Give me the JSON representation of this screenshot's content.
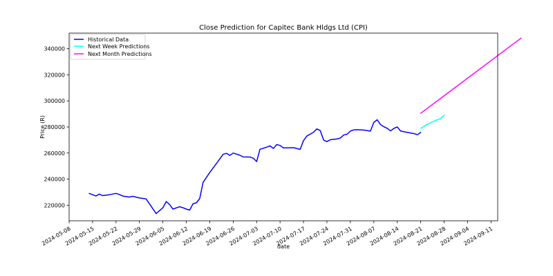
{
  "chart_data": {
    "type": "line",
    "title": "Close Prediction for Capitec Bank Hldgs Ltd (CPI)",
    "xlabel": "date",
    "ylabel": "Price (R)",
    "ylim": [
      208000,
      352000
    ],
    "xlim": [
      "2024-05-08",
      "2024-09-13"
    ],
    "grid": false,
    "legend_position": "top-left",
    "x_ticks": [
      "2024-05-08",
      "2024-05-15",
      "2024-05-22",
      "2024-05-29",
      "2024-06-05",
      "2024-06-12",
      "2024-06-19",
      "2024-06-26",
      "2024-07-03",
      "2024-07-10",
      "2024-07-17",
      "2024-07-24",
      "2024-07-31",
      "2024-08-07",
      "2024-08-14",
      "2024-08-21",
      "2024-08-28",
      "2024-09-04",
      "2024-09-11"
    ],
    "y_ticks": [
      220000,
      240000,
      260000,
      280000,
      300000,
      320000,
      340000
    ],
    "series": [
      {
        "name": "Historical Data",
        "color": "#0000ff",
        "points": [
          {
            "x": "2024-05-14",
            "y": 229000
          },
          {
            "x": "2024-05-16",
            "y": 227000
          },
          {
            "x": "2024-05-17",
            "y": 228500
          },
          {
            "x": "2024-05-18",
            "y": 227300
          },
          {
            "x": "2024-05-20",
            "y": 228000
          },
          {
            "x": "2024-05-22",
            "y": 229000
          },
          {
            "x": "2024-05-23",
            "y": 228200
          },
          {
            "x": "2024-05-24",
            "y": 227000
          },
          {
            "x": "2024-05-26",
            "y": 226200
          },
          {
            "x": "2024-05-27",
            "y": 226800
          },
          {
            "x": "2024-05-29",
            "y": 225500
          },
          {
            "x": "2024-05-31",
            "y": 224800
          },
          {
            "x": "2024-06-03",
            "y": 213500
          },
          {
            "x": "2024-06-05",
            "y": 218000
          },
          {
            "x": "2024-06-06",
            "y": 222800
          },
          {
            "x": "2024-06-07",
            "y": 220500
          },
          {
            "x": "2024-06-08",
            "y": 217000
          },
          {
            "x": "2024-06-10",
            "y": 218800
          },
          {
            "x": "2024-06-11",
            "y": 218000
          },
          {
            "x": "2024-06-12",
            "y": 217000
          },
          {
            "x": "2024-06-13",
            "y": 216200
          },
          {
            "x": "2024-06-14",
            "y": 221000
          },
          {
            "x": "2024-06-15",
            "y": 221800
          },
          {
            "x": "2024-06-16",
            "y": 225000
          },
          {
            "x": "2024-06-17",
            "y": 237500
          },
          {
            "x": "2024-06-19",
            "y": 245000
          },
          {
            "x": "2024-06-21",
            "y": 252000
          },
          {
            "x": "2024-06-23",
            "y": 259000
          },
          {
            "x": "2024-06-24",
            "y": 259800
          },
          {
            "x": "2024-06-25",
            "y": 258200
          },
          {
            "x": "2024-06-26",
            "y": 260000
          },
          {
            "x": "2024-06-28",
            "y": 258300
          },
          {
            "x": "2024-06-29",
            "y": 257000
          },
          {
            "x": "2024-07-01",
            "y": 256900
          },
          {
            "x": "2024-07-02",
            "y": 256000
          },
          {
            "x": "2024-07-03",
            "y": 253500
          },
          {
            "x": "2024-07-04",
            "y": 262900
          },
          {
            "x": "2024-07-06",
            "y": 264500
          },
          {
            "x": "2024-07-07",
            "y": 265500
          },
          {
            "x": "2024-07-08",
            "y": 263500
          },
          {
            "x": "2024-07-09",
            "y": 266500
          },
          {
            "x": "2024-07-10",
            "y": 265800
          },
          {
            "x": "2024-07-11",
            "y": 263900
          },
          {
            "x": "2024-07-13",
            "y": 264000
          },
          {
            "x": "2024-07-14",
            "y": 264100
          },
          {
            "x": "2024-07-16",
            "y": 262800
          },
          {
            "x": "2024-07-17",
            "y": 269500
          },
          {
            "x": "2024-07-18",
            "y": 273000
          },
          {
            "x": "2024-07-20",
            "y": 276000
          },
          {
            "x": "2024-07-21",
            "y": 278500
          },
          {
            "x": "2024-07-22",
            "y": 277200
          },
          {
            "x": "2024-07-23",
            "y": 270000
          },
          {
            "x": "2024-07-24",
            "y": 268800
          },
          {
            "x": "2024-07-25",
            "y": 270200
          },
          {
            "x": "2024-07-27",
            "y": 270800
          },
          {
            "x": "2024-07-28",
            "y": 271500
          },
          {
            "x": "2024-07-29",
            "y": 273800
          },
          {
            "x": "2024-07-30",
            "y": 274400
          },
          {
            "x": "2024-07-31",
            "y": 276800
          },
          {
            "x": "2024-08-01",
            "y": 277800
          },
          {
            "x": "2024-08-02",
            "y": 277900
          },
          {
            "x": "2024-08-04",
            "y": 277600
          },
          {
            "x": "2024-08-05",
            "y": 277200
          },
          {
            "x": "2024-08-06",
            "y": 276800
          },
          {
            "x": "2024-08-07",
            "y": 283500
          },
          {
            "x": "2024-08-08",
            "y": 285500
          },
          {
            "x": "2024-08-09",
            "y": 281800
          },
          {
            "x": "2024-08-10",
            "y": 280200
          },
          {
            "x": "2024-08-11",
            "y": 278900
          },
          {
            "x": "2024-08-12",
            "y": 277000
          },
          {
            "x": "2024-08-13",
            "y": 278900
          },
          {
            "x": "2024-08-14",
            "y": 280000
          },
          {
            "x": "2024-08-15",
            "y": 276900
          },
          {
            "x": "2024-08-17",
            "y": 275800
          },
          {
            "x": "2024-08-19",
            "y": 274900
          },
          {
            "x": "2024-08-20",
            "y": 274000
          },
          {
            "x": "2024-08-21",
            "y": 275800
          }
        ]
      },
      {
        "name": "Next Week Predictions",
        "color": "#00ffff",
        "points": [
          {
            "x": "2024-08-21",
            "y": 278900
          },
          {
            "x": "2024-08-23",
            "y": 282000
          },
          {
            "x": "2024-08-25",
            "y": 284500
          },
          {
            "x": "2024-08-27",
            "y": 286500
          },
          {
            "x": "2024-08-28",
            "y": 289000
          }
        ]
      },
      {
        "name": "Next Month Predictions",
        "color": "#ff00ff",
        "points": [
          {
            "x": "2024-08-21",
            "y": 290500
          },
          {
            "x": "2024-09-20",
            "y": 348200
          }
        ]
      }
    ]
  }
}
